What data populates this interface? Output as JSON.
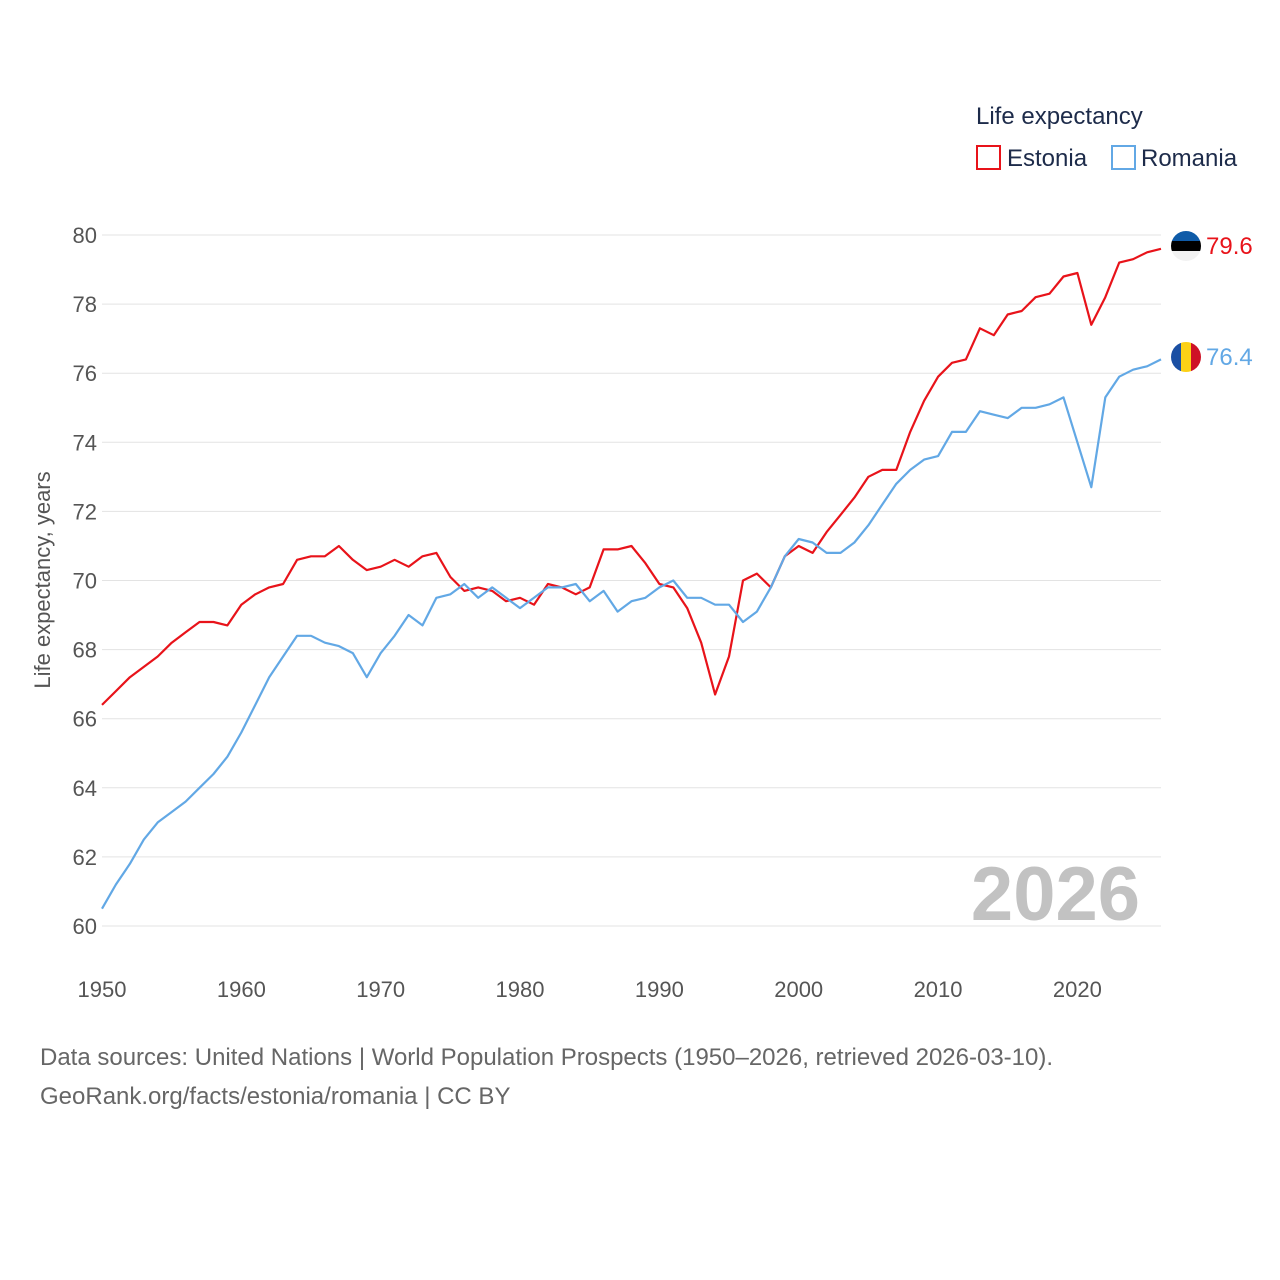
{
  "chart_data": {
    "type": "line",
    "title": "",
    "xlabel": "",
    "ylabel": "Life expectancy, years",
    "xlim": [
      1950,
      2026
    ],
    "ylim": [
      60,
      80
    ],
    "x_ticks": [
      1950,
      1960,
      1970,
      1980,
      1990,
      2000,
      2010,
      2020
    ],
    "y_ticks": [
      60,
      62,
      64,
      66,
      68,
      70,
      72,
      74,
      76,
      78,
      80
    ],
    "grid": true,
    "legend_title": "Life expectancy",
    "legend_position": "top-right",
    "current_year": "2026",
    "x": [
      1950,
      1951,
      1952,
      1953,
      1954,
      1955,
      1956,
      1957,
      1958,
      1959,
      1960,
      1961,
      1962,
      1963,
      1964,
      1965,
      1966,
      1967,
      1968,
      1969,
      1970,
      1971,
      1972,
      1973,
      1974,
      1975,
      1976,
      1977,
      1978,
      1979,
      1980,
      1981,
      1982,
      1983,
      1984,
      1985,
      1986,
      1987,
      1988,
      1989,
      1990,
      1991,
      1992,
      1993,
      1994,
      1995,
      1996,
      1997,
      1998,
      1999,
      2000,
      2001,
      2002,
      2003,
      2004,
      2005,
      2006,
      2007,
      2008,
      2009,
      2010,
      2011,
      2012,
      2013,
      2014,
      2015,
      2016,
      2017,
      2018,
      2019,
      2020,
      2021,
      2022,
      2023,
      2024,
      2025,
      2026
    ],
    "series": [
      {
        "name": "Estonia",
        "color": "#e8131a",
        "end_label": "79.6",
        "flag": "estonia-flag",
        "values": [
          66.4,
          66.8,
          67.2,
          67.5,
          67.8,
          68.2,
          68.5,
          68.8,
          68.8,
          68.7,
          69.3,
          69.6,
          69.8,
          69.9,
          70.6,
          70.7,
          70.7,
          71.0,
          70.6,
          70.3,
          70.4,
          70.6,
          70.4,
          70.7,
          70.8,
          70.1,
          69.7,
          69.8,
          69.7,
          69.4,
          69.5,
          69.3,
          69.9,
          69.8,
          69.6,
          69.8,
          70.9,
          70.9,
          71.0,
          70.5,
          69.9,
          69.8,
          69.2,
          68.2,
          66.7,
          67.8,
          70.0,
          70.2,
          69.8,
          70.7,
          71.0,
          70.8,
          71.4,
          71.9,
          72.4,
          73.0,
          73.2,
          73.2,
          74.3,
          75.2,
          75.9,
          76.3,
          76.4,
          77.3,
          77.1,
          77.7,
          77.8,
          78.2,
          78.3,
          78.8,
          78.9,
          77.4,
          78.2,
          79.2,
          79.3,
          79.5,
          79.6
        ]
      },
      {
        "name": "Romania",
        "color": "#62a8e5",
        "end_label": "76.4",
        "flag": "romania-flag",
        "values": [
          60.5,
          61.2,
          61.8,
          62.5,
          63.0,
          63.3,
          63.6,
          64.0,
          64.4,
          64.9,
          65.6,
          66.4,
          67.2,
          67.8,
          68.4,
          68.4,
          68.2,
          68.1,
          67.9,
          67.2,
          67.9,
          68.4,
          69.0,
          68.7,
          69.5,
          69.6,
          69.9,
          69.5,
          69.8,
          69.5,
          69.2,
          69.5,
          69.8,
          69.8,
          69.9,
          69.4,
          69.7,
          69.1,
          69.4,
          69.5,
          69.8,
          70.0,
          69.5,
          69.5,
          69.3,
          69.3,
          68.8,
          69.1,
          69.8,
          70.7,
          71.2,
          71.1,
          70.8,
          70.8,
          71.1,
          71.6,
          72.2,
          72.8,
          73.2,
          73.5,
          73.6,
          74.3,
          74.3,
          74.9,
          74.8,
          74.7,
          75.0,
          75.0,
          75.1,
          75.3,
          74.0,
          72.7,
          75.3,
          75.9,
          76.1,
          76.2,
          76.4
        ]
      }
    ]
  },
  "footer": {
    "sources": "Data sources: United Nations | World Population Prospects (1950–2026, retrieved 2026-03-10).",
    "attribution": "GeoRank.org/facts/estonia/romania | CC BY"
  }
}
